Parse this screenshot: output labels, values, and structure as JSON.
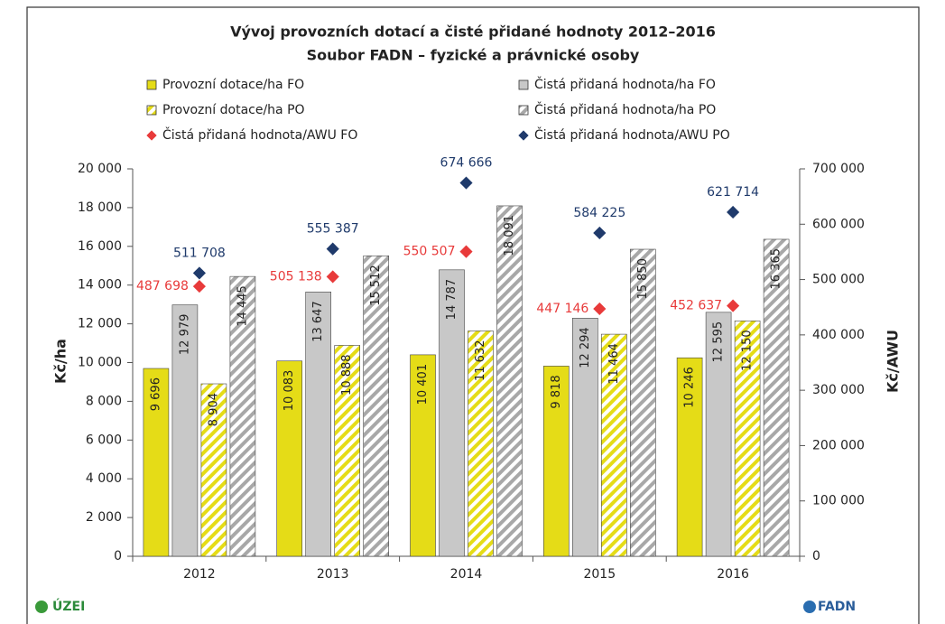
{
  "chart_data": {
    "type": "bar",
    "title": "Vývoj provozních dotací a čisté přidané hodnoty 2012–2016",
    "subtitle": "Soubor FADN – fyzické a právnické osoby",
    "y_label": "Kč/ha",
    "y2_label": "Kč/AWU",
    "legend": "top",
    "categories": [
      "2012",
      "2013",
      "2014",
      "2015",
      "2016"
    ],
    "series": [
      {
        "name": "Provozní dotace/ha FO",
        "color": "#e5dc17",
        "pattern": "solid",
        "values": [
          9696,
          10083,
          10401,
          9818,
          10246
        ],
        "value_labels": [
          "9 696",
          "10 083",
          "10 401",
          "9 818",
          "10 246"
        ]
      },
      {
        "name": "Čistá přidaná hodnota/ha FO",
        "color": "#c8c8c8",
        "pattern": "solid",
        "values": [
          12979,
          13647,
          14787,
          12294,
          12595
        ],
        "value_labels": [
          "12 979",
          "13 647",
          "14 787",
          "12 294",
          "12 595"
        ]
      },
      {
        "name": "Provozní dotace/ha PO",
        "color": "#e5dc17",
        "pattern": "hatch",
        "values": [
          8904,
          10888,
          11632,
          11464,
          12150
        ],
        "value_labels": [
          "8 904",
          "10 888",
          "11 632",
          "11 464",
          "12 150"
        ]
      },
      {
        "name": "Čistá přidaná hodnota/ha PO",
        "color": "#a8a8a8",
        "pattern": "hatch",
        "values": [
          14445,
          15512,
          18091,
          15850,
          16365
        ],
        "value_labels": [
          "14 445",
          "15 512",
          "18 091",
          "15 850",
          "16 365"
        ]
      },
      {
        "name": "Čistá přidaná hodnota/AWU FO",
        "color": "#e83a3a",
        "marker": "diamond",
        "axis": "y2",
        "values": [
          487698,
          505138,
          550507,
          447146,
          452637
        ],
        "value_labels": [
          "487 698",
          "505 138",
          "550 507",
          "447 146",
          "452 637"
        ]
      },
      {
        "name": "Čistá přidaná hodnota/AWU PO",
        "color": "#1f3a6b",
        "marker": "diamond",
        "axis": "y2",
        "values": [
          511708,
          555387,
          674666,
          584225,
          621714
        ],
        "value_labels": [
          "511 708",
          "555 387",
          "674 666",
          "584 225",
          "621 714"
        ]
      }
    ],
    "ylim": [
      0,
      20000
    ],
    "yticks": [
      0,
      {
        "value": 2000,
        "label": "2 000"
      },
      {
        "value": 4000,
        "label": "4 000"
      },
      {
        "value": 6000,
        "label": "6 000"
      },
      {
        "value": 8000,
        "label": "8 000"
      },
      {
        "value": 10000,
        "label": "10 000"
      },
      {
        "value": 12000,
        "label": "12 000"
      },
      {
        "value": 14000,
        "label": "14 000"
      },
      {
        "value": 16000,
        "label": "16 000"
      },
      {
        "value": 18000,
        "label": "18 000"
      },
      {
        "value": 20000,
        "label": "20 000"
      }
    ],
    "y2lim": [
      0,
      700000
    ],
    "y2ticks": [
      0,
      {
        "value": 100000,
        "label": "100 000"
      },
      {
        "value": 200000,
        "label": "200 000"
      },
      {
        "value": 300000,
        "label": "300 000"
      },
      {
        "value": 400000,
        "label": "400 000"
      },
      {
        "value": 500000,
        "label": "500 000"
      },
      {
        "value": 600000,
        "label": "600 000"
      },
      {
        "value": 700000,
        "label": "700 000"
      }
    ],
    "grid": false
  },
  "footer": {
    "left_logo": "ÚZEI",
    "right_logo": "FADN"
  }
}
